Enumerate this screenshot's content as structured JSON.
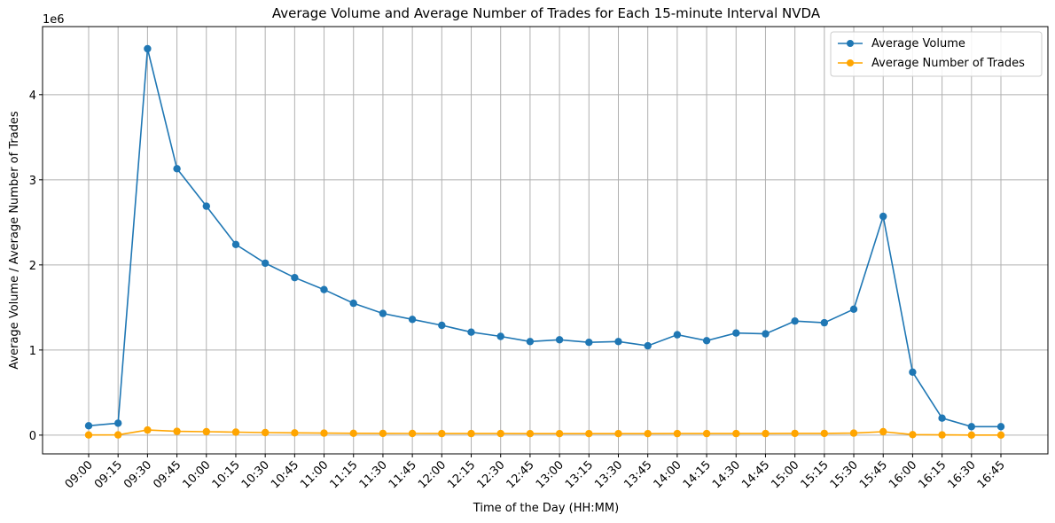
{
  "chart_data": {
    "type": "line",
    "title": "Average Volume and Average Number of Trades for Each 15-minute Interval NVDA",
    "xlabel": "Time of the Day (HH:MM)",
    "ylabel": "Average Volume / Average Number of Trades",
    "y_offset_label": "1e6",
    "y_scale_factor": 1000000,
    "ylim": [
      -0.22,
      4.8
    ],
    "yticks": [
      0,
      1,
      2,
      3,
      4
    ],
    "grid": true,
    "legend_position": "top-right",
    "categories": [
      "09:00",
      "09:15",
      "09:30",
      "09:45",
      "10:00",
      "10:15",
      "10:30",
      "10:45",
      "11:00",
      "11:15",
      "11:30",
      "11:45",
      "12:00",
      "12:15",
      "12:30",
      "12:45",
      "13:00",
      "13:15",
      "13:30",
      "13:45",
      "14:00",
      "14:15",
      "14:30",
      "14:45",
      "15:00",
      "15:15",
      "15:30",
      "15:45",
      "16:00",
      "16:15",
      "16:30",
      "16:45"
    ],
    "series": [
      {
        "name": "Average Volume",
        "color": "#1f77b4",
        "values": [
          0.11,
          0.14,
          4.54,
          3.13,
          2.69,
          2.24,
          2.02,
          1.85,
          1.71,
          1.55,
          1.43,
          1.36,
          1.29,
          1.21,
          1.16,
          1.1,
          1.12,
          1.09,
          1.1,
          1.05,
          1.18,
          1.11,
          1.2,
          1.19,
          1.34,
          1.32,
          1.48,
          2.57,
          0.74,
          0.2,
          0.1,
          0.1
        ]
      },
      {
        "name": "Average Number of Trades",
        "color": "#ffa500",
        "values": [
          0.002,
          0.003,
          0.06,
          0.045,
          0.04,
          0.035,
          0.03,
          0.027,
          0.024,
          0.022,
          0.021,
          0.02,
          0.019,
          0.018,
          0.018,
          0.017,
          0.017,
          0.017,
          0.017,
          0.017,
          0.018,
          0.018,
          0.019,
          0.019,
          0.021,
          0.021,
          0.024,
          0.04,
          0.006,
          0.003,
          0.001,
          0.001
        ]
      }
    ]
  }
}
